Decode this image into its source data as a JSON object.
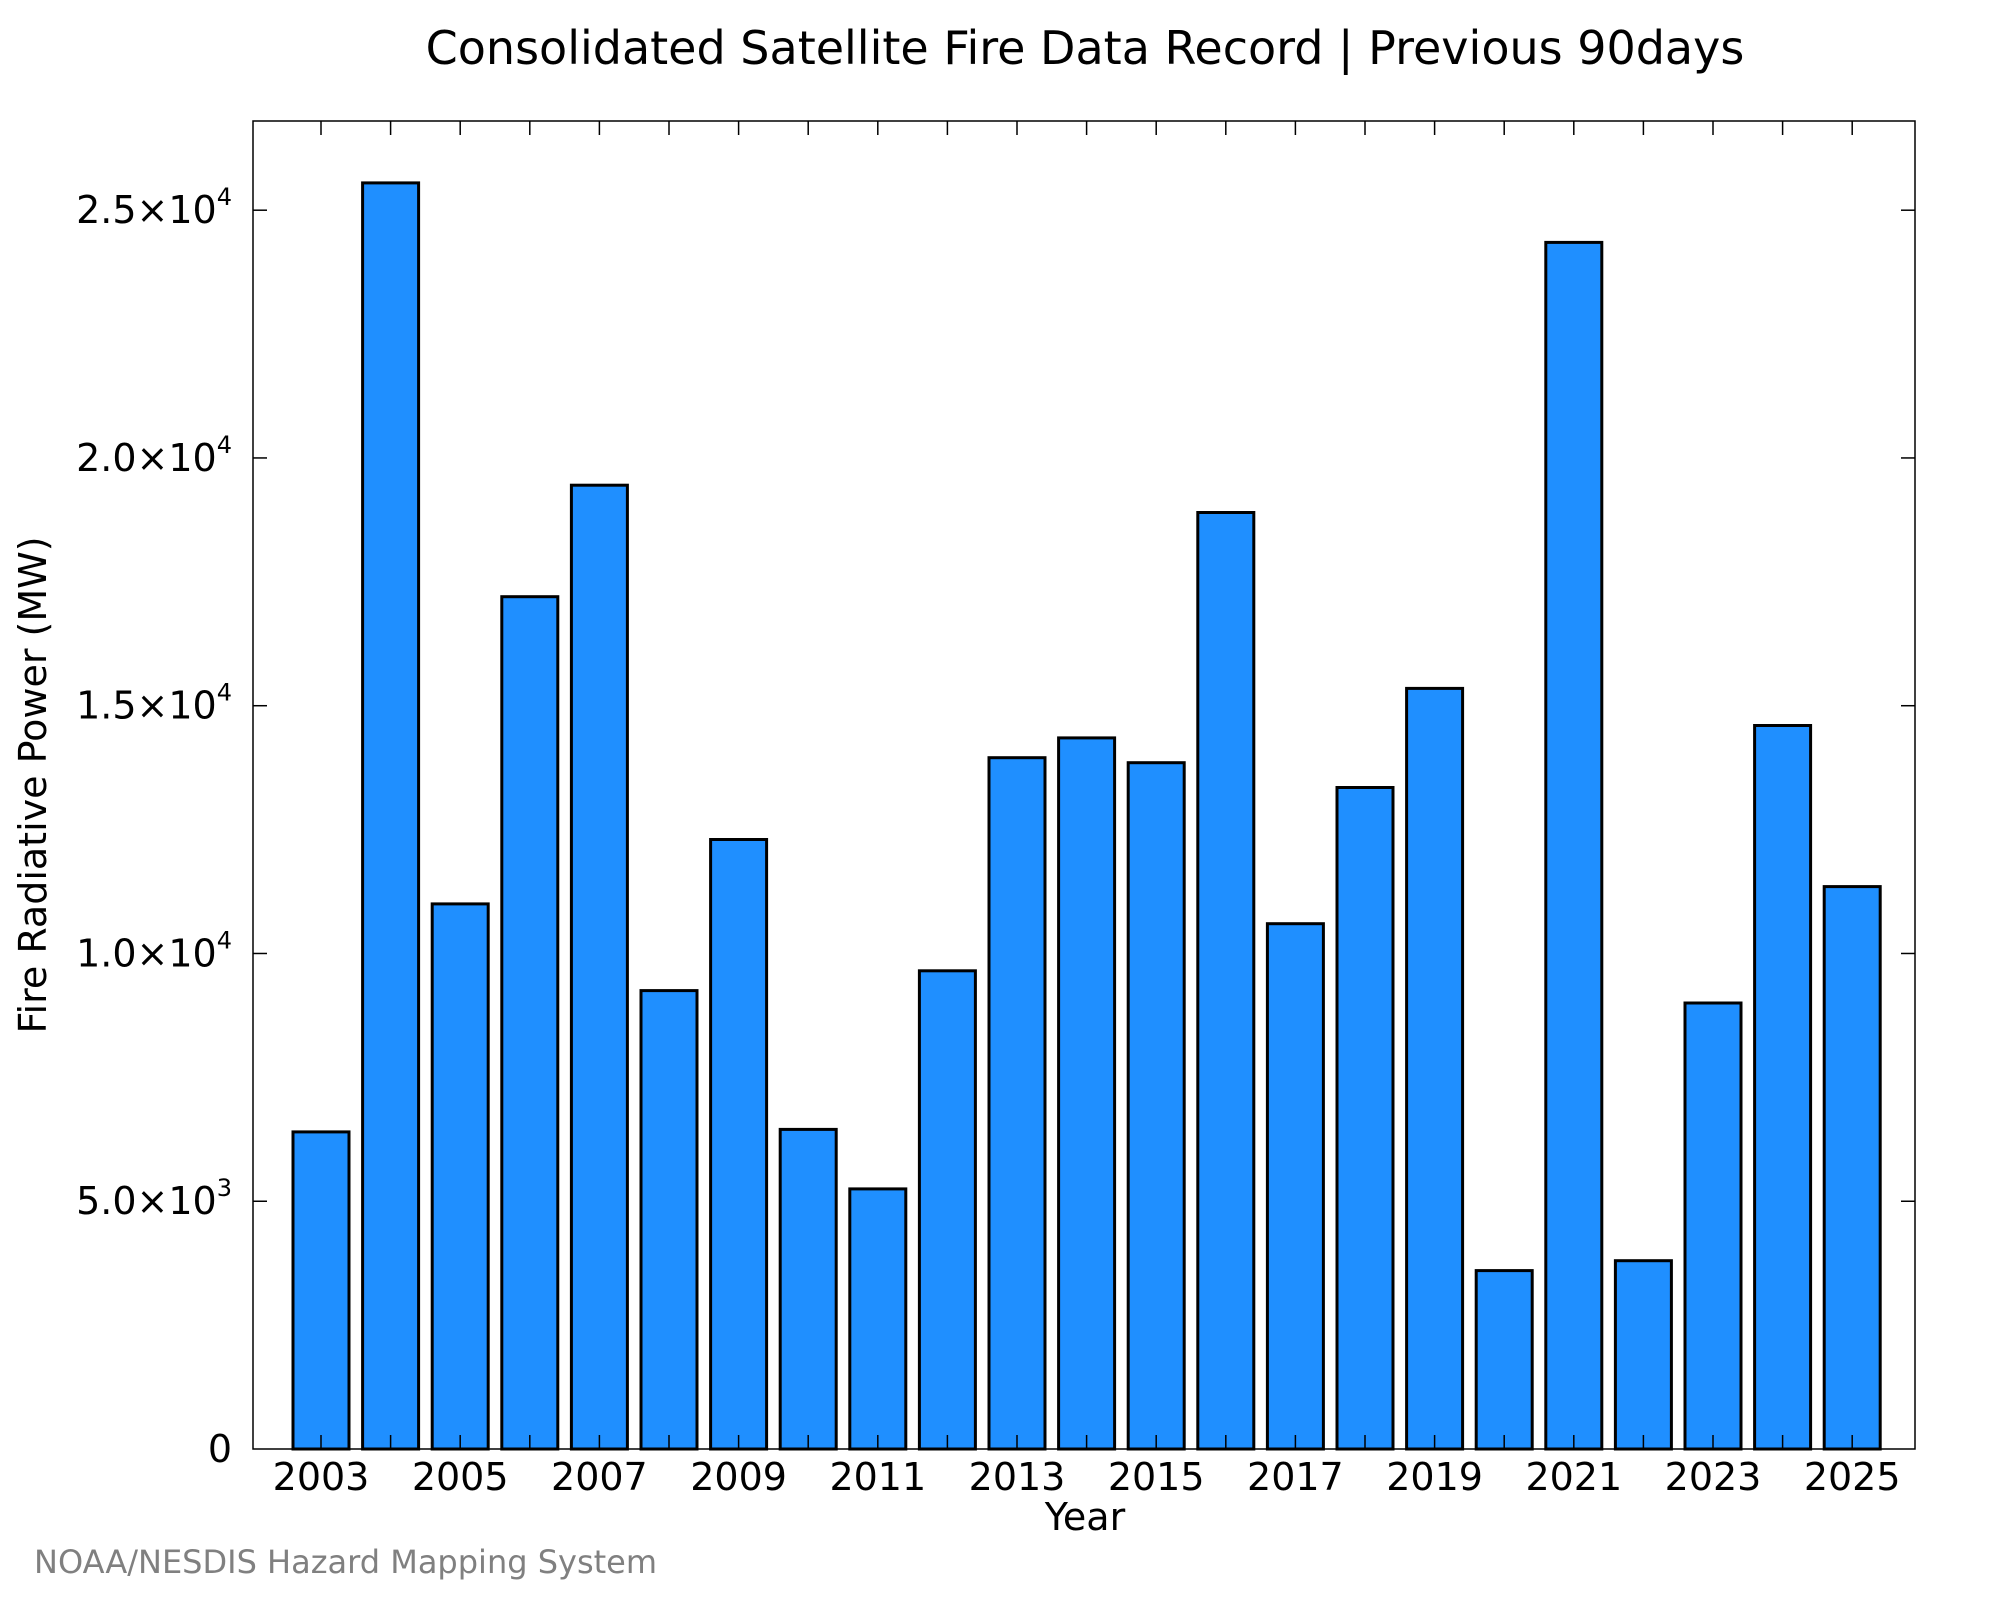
{
  "chart_data": {
    "type": "bar",
    "title": "Consolidated Satellite Fire Data Record | Previous 90days",
    "xlabel": "Year",
    "ylabel": "Fire Radiative Power (MW)",
    "categories": [
      "2003",
      "2004",
      "2005",
      "2006",
      "2007",
      "2008",
      "2009",
      "2010",
      "2011",
      "2012",
      "2013",
      "2014",
      "2015",
      "2016",
      "2017",
      "2018",
      "2019",
      "2020",
      "2021",
      "2022",
      "2023",
      "2024",
      "2025"
    ],
    "values": [
      6400,
      25550,
      11000,
      17200,
      19450,
      9250,
      12300,
      6450,
      5250,
      9650,
      13950,
      14350,
      13850,
      18900,
      10600,
      13350,
      15350,
      3600,
      24350,
      3800,
      9000,
      14600,
      11350
    ],
    "ylim": [
      0,
      26800
    ],
    "x_tick_labels": [
      "2003",
      "2005",
      "2007",
      "2009",
      "2011",
      "2013",
      "2015",
      "2017",
      "2019",
      "2021",
      "2023",
      "2025"
    ],
    "y_ticks": [
      {
        "value": 0,
        "label": "0",
        "exp": ""
      },
      {
        "value": 5000,
        "label": "5.0×10",
        "exp": "3"
      },
      {
        "value": 10000,
        "label": "1.0×10",
        "exp": "4"
      },
      {
        "value": 15000,
        "label": "1.5×10",
        "exp": "4"
      },
      {
        "value": 20000,
        "label": "2.0×10",
        "exp": "4"
      },
      {
        "value": 25000,
        "label": "2.5×10",
        "exp": "4"
      }
    ],
    "bar_color": "#1f8fff",
    "grid": false,
    "legend": "none"
  },
  "credit": "NOAA/NESDIS Hazard Mapping System"
}
